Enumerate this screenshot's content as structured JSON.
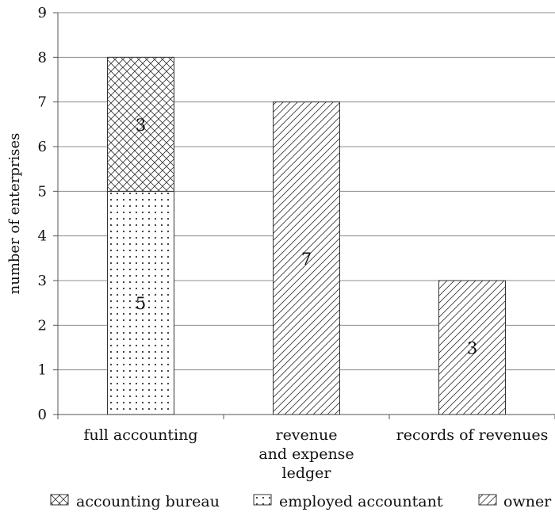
{
  "chart_data": {
    "type": "bar",
    "stacked": true,
    "title": "",
    "xlabel": "",
    "ylabel": "number of enterprises",
    "ylim": [
      0,
      9
    ],
    "yticks": [
      0,
      1,
      2,
      3,
      4,
      5,
      6,
      7,
      8,
      9
    ],
    "grid": true,
    "legend_position": "bottom",
    "categories": [
      [
        "full accounting"
      ],
      [
        "revenue",
        "and expense",
        "ledger"
      ],
      [
        "records of revenues"
      ]
    ],
    "series": [
      {
        "name": "accounting bureau",
        "pattern": "crosshatch",
        "values": [
          3,
          0,
          0
        ]
      },
      {
        "name": "employed accountant",
        "pattern": "dots",
        "values": [
          5,
          0,
          0
        ]
      },
      {
        "name": "owner",
        "pattern": "diagonal",
        "values": [
          0,
          7,
          3
        ]
      }
    ]
  }
}
